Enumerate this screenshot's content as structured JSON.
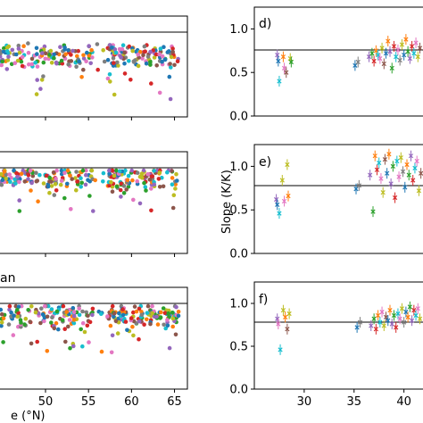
{
  "chart_data": [
    {
      "panel": "left-top",
      "type": "scatter",
      "panel_letter": "",
      "xlim": [
        44.5,
        66.5
      ],
      "ylim": [
        0,
        1.35
      ],
      "reference_line": 1.25,
      "marker": "dot",
      "x_ticks": [
        50,
        55,
        60,
        65
      ],
      "show_x_tick_labels": false,
      "cluster_center_y": 0.82,
      "points_note": "dense multicolor station scatter, values mostly 0.6-1.0"
    },
    {
      "panel": "left-middle",
      "type": "scatter",
      "panel_letter": "",
      "xlim": [
        44.5,
        66.5
      ],
      "ylim": [
        0,
        1.35
      ],
      "reference_line": 1.25,
      "marker": "dot",
      "x_ticks": [
        50,
        55,
        60,
        65
      ],
      "show_x_tick_labels": false,
      "cluster_center_y": 1.0
    },
    {
      "panel": "left-bottom",
      "type": "scatter",
      "panel_letter": "",
      "title_fragment": "an",
      "xlim": [
        44.5,
        66.5
      ],
      "ylim": [
        0,
        1.35
      ],
      "reference_line": 1.25,
      "marker": "dot",
      "x_ticks": [
        50,
        55,
        60,
        65
      ],
      "x_tick_labels": [
        "50",
        "55",
        "60",
        "65"
      ],
      "xlabel_fragment": "e (°N)",
      "cluster_center_y": 0.98
    },
    {
      "panel": "right-d",
      "type": "scatter",
      "panel_letter": "d)",
      "xlim": [
        25,
        42
      ],
      "ylim": [
        0,
        1.25
      ],
      "reference_line": 1.0,
      "marker": "x",
      "y_ticks": [
        0.0,
        0.5,
        1.0
      ],
      "y_tick_labels": [
        "0.0",
        "0.5",
        "1.0"
      ],
      "points": [
        {
          "x": 27.3,
          "y": 0.7,
          "c": "#9467bd"
        },
        {
          "x": 27.4,
          "y": 0.63,
          "c": "#1f77b4"
        },
        {
          "x": 27.5,
          "y": 0.4,
          "c": "#17becf"
        },
        {
          "x": 27.9,
          "y": 0.68,
          "c": "#ff7f0e"
        },
        {
          "x": 28.0,
          "y": 0.55,
          "c": "#e377c2"
        },
        {
          "x": 28.2,
          "y": 0.5,
          "c": "#8c564b"
        },
        {
          "x": 28.6,
          "y": 0.66,
          "c": "#bcbd22"
        },
        {
          "x": 28.7,
          "y": 0.62,
          "c": "#2ca02c"
        },
        {
          "x": 35.1,
          "y": 0.58,
          "c": "#1f77b4"
        },
        {
          "x": 35.4,
          "y": 0.62,
          "c": "#7f7f7f"
        },
        {
          "x": 36.5,
          "y": 0.68,
          "c": "#9467bd"
        },
        {
          "x": 36.8,
          "y": 0.72,
          "c": "#2ca02c"
        },
        {
          "x": 37.0,
          "y": 0.63,
          "c": "#d62728"
        },
        {
          "x": 37.2,
          "y": 0.75,
          "c": "#ff7f0e"
        },
        {
          "x": 37.4,
          "y": 0.7,
          "c": "#17becf"
        },
        {
          "x": 37.6,
          "y": 0.66,
          "c": "#e377c2"
        },
        {
          "x": 37.8,
          "y": 0.78,
          "c": "#bcbd22"
        },
        {
          "x": 38.0,
          "y": 0.6,
          "c": "#8c564b"
        },
        {
          "x": 38.2,
          "y": 0.72,
          "c": "#1f77b4"
        },
        {
          "x": 38.4,
          "y": 0.86,
          "c": "#ff7f0e"
        },
        {
          "x": 38.6,
          "y": 0.74,
          "c": "#9467bd"
        },
        {
          "x": 38.8,
          "y": 0.55,
          "c": "#2ca02c"
        },
        {
          "x": 39.0,
          "y": 0.8,
          "c": "#d62728"
        },
        {
          "x": 39.2,
          "y": 0.68,
          "c": "#17becf"
        },
        {
          "x": 39.4,
          "y": 0.76,
          "c": "#e377c2"
        },
        {
          "x": 39.6,
          "y": 0.64,
          "c": "#7f7f7f"
        },
        {
          "x": 39.8,
          "y": 0.82,
          "c": "#bcbd22"
        },
        {
          "x": 40.0,
          "y": 0.7,
          "c": "#1f77b4"
        },
        {
          "x": 40.2,
          "y": 0.88,
          "c": "#ff7f0e"
        },
        {
          "x": 40.4,
          "y": 0.74,
          "c": "#2ca02c"
        },
        {
          "x": 40.6,
          "y": 0.66,
          "c": "#9467bd"
        },
        {
          "x": 40.8,
          "y": 0.8,
          "c": "#d62728"
        },
        {
          "x": 41.0,
          "y": 0.72,
          "c": "#17becf"
        },
        {
          "x": 41.2,
          "y": 0.84,
          "c": "#e377c2"
        },
        {
          "x": 41.4,
          "y": 0.68,
          "c": "#bcbd22"
        },
        {
          "x": 41.6,
          "y": 0.78,
          "c": "#8c564b"
        }
      ]
    },
    {
      "panel": "right-e",
      "type": "scatter",
      "panel_letter": "e)",
      "ylabel": "Slope (K/K)",
      "xlim": [
        25,
        42
      ],
      "ylim": [
        0,
        1.25
      ],
      "reference_line": 1.0,
      "marker": "x",
      "y_ticks": [
        0.0,
        0.5,
        1.0
      ],
      "y_tick_labels": [
        "0.0",
        "0.5",
        "1.0"
      ],
      "points": [
        {
          "x": 27.2,
          "y": 0.62,
          "c": "#9467bd"
        },
        {
          "x": 27.3,
          "y": 0.56,
          "c": "#1f77b4"
        },
        {
          "x": 27.5,
          "y": 0.46,
          "c": "#17becf"
        },
        {
          "x": 27.8,
          "y": 0.84,
          "c": "#bcbd22"
        },
        {
          "x": 28.0,
          "y": 0.6,
          "c": "#e377c2"
        },
        {
          "x": 28.3,
          "y": 1.02,
          "c": "#bcbd22"
        },
        {
          "x": 28.4,
          "y": 0.66,
          "c": "#ff7f0e"
        },
        {
          "x": 35.2,
          "y": 0.74,
          "c": "#1f77b4"
        },
        {
          "x": 35.5,
          "y": 0.78,
          "c": "#7f7f7f"
        },
        {
          "x": 36.6,
          "y": 0.9,
          "c": "#9467bd"
        },
        {
          "x": 36.9,
          "y": 0.48,
          "c": "#2ca02c"
        },
        {
          "x": 37.1,
          "y": 1.12,
          "c": "#ff7f0e"
        },
        {
          "x": 37.3,
          "y": 0.96,
          "c": "#d62728"
        },
        {
          "x": 37.5,
          "y": 1.04,
          "c": "#17becf"
        },
        {
          "x": 37.7,
          "y": 0.86,
          "c": "#e377c2"
        },
        {
          "x": 37.9,
          "y": 0.7,
          "c": "#bcbd22"
        },
        {
          "x": 38.1,
          "y": 1.08,
          "c": "#8c564b"
        },
        {
          "x": 38.3,
          "y": 0.92,
          "c": "#1f77b4"
        },
        {
          "x": 38.5,
          "y": 1.14,
          "c": "#ff7f0e"
        },
        {
          "x": 38.7,
          "y": 0.8,
          "c": "#9467bd"
        },
        {
          "x": 38.9,
          "y": 1.0,
          "c": "#2ca02c"
        },
        {
          "x": 39.1,
          "y": 0.64,
          "c": "#d62728"
        },
        {
          "x": 39.3,
          "y": 1.06,
          "c": "#17becf"
        },
        {
          "x": 39.5,
          "y": 0.88,
          "c": "#e377c2"
        },
        {
          "x": 39.7,
          "y": 1.1,
          "c": "#bcbd22"
        },
        {
          "x": 39.9,
          "y": 0.94,
          "c": "#7f7f7f"
        },
        {
          "x": 40.1,
          "y": 0.76,
          "c": "#1f77b4"
        },
        {
          "x": 40.3,
          "y": 1.02,
          "c": "#ff7f0e"
        },
        {
          "x": 40.5,
          "y": 0.9,
          "c": "#2ca02c"
        },
        {
          "x": 40.7,
          "y": 1.12,
          "c": "#9467bd"
        },
        {
          "x": 40.9,
          "y": 0.84,
          "c": "#d62728"
        },
        {
          "x": 41.1,
          "y": 0.98,
          "c": "#17becf"
        },
        {
          "x": 41.3,
          "y": 1.06,
          "c": "#e377c2"
        },
        {
          "x": 41.5,
          "y": 0.72,
          "c": "#bcbd22"
        },
        {
          "x": 41.7,
          "y": 0.92,
          "c": "#8c564b"
        }
      ]
    },
    {
      "panel": "right-f",
      "type": "scatter",
      "panel_letter": "f)",
      "xlim": [
        25,
        42
      ],
      "ylim": [
        0,
        1.25
      ],
      "reference_line": 1.0,
      "marker": "x",
      "y_ticks": [
        0.0,
        0.5,
        1.0
      ],
      "y_tick_labels": [
        "0.0",
        "0.5",
        "1.0"
      ],
      "x_ticks": [
        30,
        35,
        40
      ],
      "x_tick_labels": [
        "30",
        "35",
        "40"
      ],
      "points": [
        {
          "x": 27.3,
          "y": 0.82,
          "c": "#9467bd"
        },
        {
          "x": 27.4,
          "y": 0.76,
          "c": "#e377c2"
        },
        {
          "x": 27.6,
          "y": 0.46,
          "c": "#17becf"
        },
        {
          "x": 27.9,
          "y": 0.92,
          "c": "#bcbd22"
        },
        {
          "x": 28.1,
          "y": 0.84,
          "c": "#ff7f0e"
        },
        {
          "x": 28.3,
          "y": 0.7,
          "c": "#8c564b"
        },
        {
          "x": 28.5,
          "y": 0.88,
          "c": "#bcbd22"
        },
        {
          "x": 35.3,
          "y": 0.72,
          "c": "#1f77b4"
        },
        {
          "x": 35.6,
          "y": 0.78,
          "c": "#7f7f7f"
        },
        {
          "x": 36.7,
          "y": 0.74,
          "c": "#9467bd"
        },
        {
          "x": 37.0,
          "y": 0.82,
          "c": "#2ca02c"
        },
        {
          "x": 37.2,
          "y": 0.7,
          "c": "#d62728"
        },
        {
          "x": 37.4,
          "y": 0.86,
          "c": "#ff7f0e"
        },
        {
          "x": 37.6,
          "y": 0.78,
          "c": "#17becf"
        },
        {
          "x": 37.8,
          "y": 0.9,
          "c": "#e377c2"
        },
        {
          "x": 38.0,
          "y": 0.74,
          "c": "#bcbd22"
        },
        {
          "x": 38.2,
          "y": 0.84,
          "c": "#8c564b"
        },
        {
          "x": 38.4,
          "y": 0.8,
          "c": "#1f77b4"
        },
        {
          "x": 38.6,
          "y": 0.92,
          "c": "#ff7f0e"
        },
        {
          "x": 38.8,
          "y": 0.76,
          "c": "#9467bd"
        },
        {
          "x": 39.0,
          "y": 0.86,
          "c": "#2ca02c"
        },
        {
          "x": 39.2,
          "y": 0.72,
          "c": "#d62728"
        },
        {
          "x": 39.4,
          "y": 0.88,
          "c": "#17becf"
        },
        {
          "x": 39.6,
          "y": 0.82,
          "c": "#e377c2"
        },
        {
          "x": 39.8,
          "y": 0.94,
          "c": "#bcbd22"
        },
        {
          "x": 40.0,
          "y": 0.78,
          "c": "#7f7f7f"
        },
        {
          "x": 40.2,
          "y": 0.9,
          "c": "#1f77b4"
        },
        {
          "x": 40.4,
          "y": 0.84,
          "c": "#ff7f0e"
        },
        {
          "x": 40.6,
          "y": 0.96,
          "c": "#2ca02c"
        },
        {
          "x": 40.8,
          "y": 0.8,
          "c": "#9467bd"
        },
        {
          "x": 41.0,
          "y": 0.92,
          "c": "#d62728"
        },
        {
          "x": 41.2,
          "y": 0.86,
          "c": "#17becf"
        },
        {
          "x": 41.4,
          "y": 0.94,
          "c": "#e377c2"
        },
        {
          "x": 41.6,
          "y": 0.82,
          "c": "#bcbd22"
        }
      ]
    }
  ],
  "colors": [
    "#1f77b4",
    "#ff7f0e",
    "#2ca02c",
    "#d62728",
    "#9467bd",
    "#8c564b",
    "#e377c2",
    "#7f7f7f",
    "#bcbd22",
    "#17becf"
  ]
}
